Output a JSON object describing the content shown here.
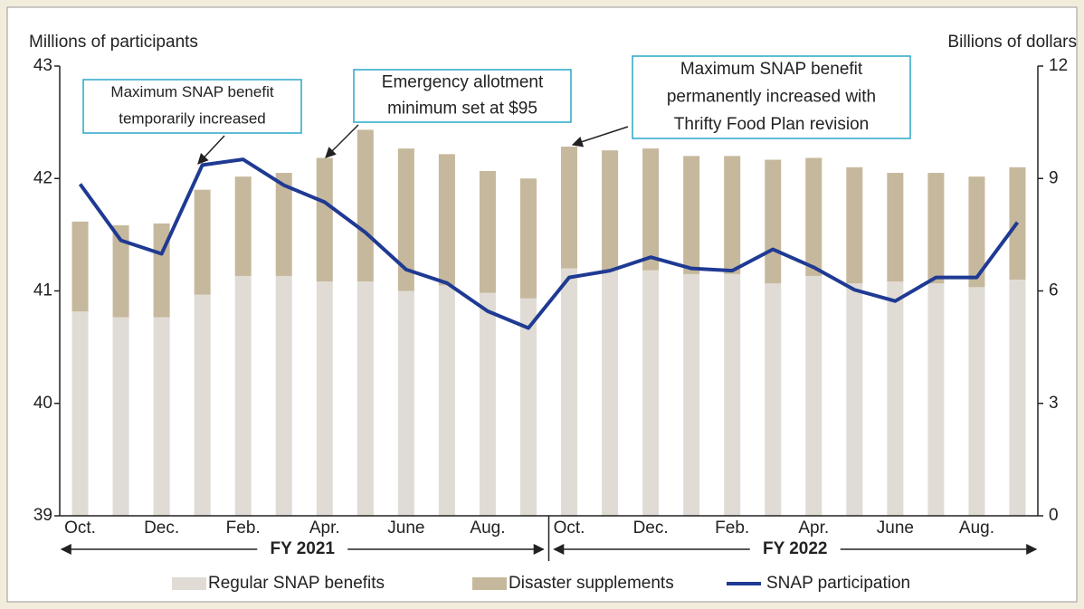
{
  "chart_data": {
    "type": "bar-line",
    "y_label": "Millions of participants",
    "y2_label": "Billions of dollars",
    "categories": [
      "Oct.",
      null,
      "Dec.",
      null,
      "Feb.",
      null,
      "Apr.",
      null,
      "June",
      null,
      "Aug.",
      null,
      "Oct.",
      null,
      "Dec.",
      null,
      "Feb.",
      null,
      "Apr.",
      null,
      "June",
      null,
      "Aug.",
      null
    ],
    "groups": [
      "FY 2021",
      "FY 2022"
    ],
    "ylim": [
      39,
      43
    ],
    "yticks": [
      39,
      40,
      41,
      42,
      43
    ],
    "y2lim": [
      0,
      12
    ],
    "y2ticks": [
      0,
      3,
      6,
      9,
      12
    ],
    "series": [
      {
        "name": "Regular SNAP benefits",
        "color": "#e0dcd5",
        "axis": "y2",
        "kind": "stacked-bar",
        "values": [
          5.45,
          5.3,
          5.3,
          5.9,
          6.4,
          6.4,
          6.25,
          6.25,
          6.0,
          6.15,
          5.95,
          5.8,
          6.6,
          6.55,
          6.55,
          6.45,
          6.45,
          6.2,
          6.4,
          6.2,
          6.25,
          6.2,
          6.1,
          6.3
        ]
      },
      {
        "name": "Disaster supplements",
        "color": "#c6b89c",
        "axis": "y2",
        "kind": "stacked-bar",
        "values": [
          2.4,
          2.45,
          2.5,
          2.8,
          2.65,
          2.75,
          3.3,
          4.05,
          3.8,
          3.5,
          3.25,
          3.2,
          3.25,
          3.2,
          3.25,
          3.15,
          3.15,
          3.3,
          3.15,
          3.1,
          2.9,
          2.95,
          2.95,
          3.0
        ]
      },
      {
        "name": "SNAP participation",
        "color": "#1f3a93",
        "axis": "y",
        "kind": "line",
        "values": [
          41.95,
          41.45,
          41.33,
          42.12,
          42.17,
          41.94,
          41.79,
          41.52,
          41.19,
          41.07,
          40.82,
          40.67,
          41.12,
          41.18,
          41.3,
          41.2,
          41.18,
          41.37,
          41.21,
          41.01,
          40.91,
          41.12,
          41.12,
          41.61
        ]
      }
    ],
    "annotations": [
      {
        "text": [
          "Maximum SNAP benefit",
          "temporarily increased"
        ]
      },
      {
        "text": [
          "Emergency allotment",
          "minimum set at $95"
        ]
      },
      {
        "text": [
          "Maximum SNAP benefit",
          "permanently increased with",
          "Thrifty Food Plan revision"
        ]
      }
    ]
  }
}
